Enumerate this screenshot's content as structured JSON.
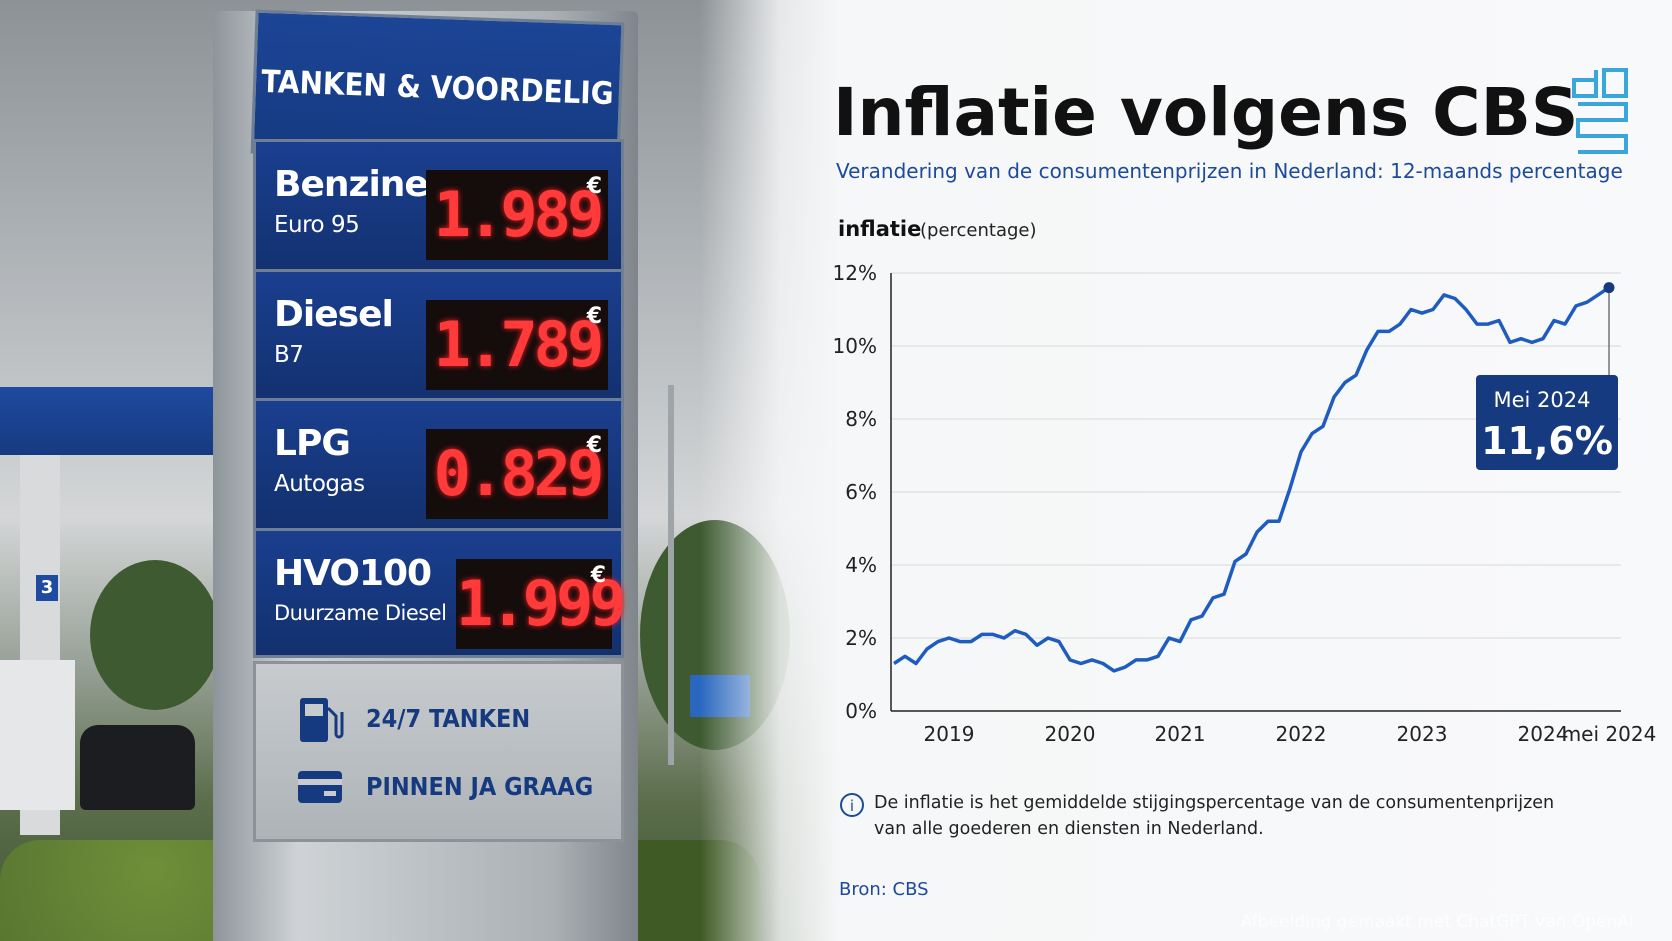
{
  "chart_data": {
    "type": "line",
    "title": "Inflatie volgens CBS",
    "subtitle": "Verandering van de consumentenprijzen in Nederland: 12-maands percentage",
    "y_label": "inflatie",
    "y_label_note": "(percentage)",
    "categories": [
      null,
      null,
      null,
      null,
      null,
      "2019",
      null,
      null,
      null,
      null,
      null,
      null,
      null,
      null,
      null,
      null,
      "2020",
      null,
      null,
      null,
      null,
      null,
      null,
      null,
      null,
      null,
      "2021",
      null,
      null,
      null,
      null,
      null,
      null,
      null,
      null,
      null,
      null,
      "2022",
      null,
      null,
      null,
      null,
      null,
      null,
      null,
      null,
      null,
      null,
      "2023",
      null,
      null,
      null,
      null,
      null,
      null,
      null,
      null,
      null,
      null,
      "2024",
      null,
      null,
      null,
      null,
      null,
      "mei 2024"
    ],
    "values": [
      1.3,
      1.5,
      1.3,
      1.7,
      1.9,
      2.0,
      1.9,
      1.9,
      2.1,
      2.1,
      2.0,
      2.2,
      2.1,
      1.8,
      2.0,
      1.9,
      1.4,
      1.3,
      1.4,
      1.3,
      1.1,
      1.2,
      1.4,
      1.4,
      1.5,
      2.0,
      1.9,
      2.5,
      2.6,
      3.1,
      3.2,
      4.1,
      4.3,
      4.9,
      5.2,
      5.2,
      6.1,
      7.1,
      7.6,
      7.8,
      8.6,
      9.0,
      9.2,
      9.9,
      10.4,
      10.4,
      10.6,
      11.0,
      10.9,
      11.0,
      11.4,
      11.3,
      11.0,
      10.6,
      10.6,
      10.7,
      10.1,
      10.2,
      10.1,
      10.2,
      10.7,
      10.6,
      11.1,
      11.2,
      11.4,
      11.6
    ],
    "color": "#1f5cc0",
    "ylim": [
      0,
      12
    ],
    "yticks": [
      {
        "value": 0,
        "label": "0%"
      },
      {
        "value": 2,
        "label": "2%"
      },
      {
        "value": 4,
        "label": "4%"
      },
      {
        "value": 6,
        "label": "6%"
      },
      {
        "value": 8,
        "label": "8%"
      },
      {
        "value": 10,
        "label": "10%"
      },
      {
        "value": 12,
        "label": "12%"
      }
    ],
    "grid": true,
    "annotation": {
      "title": "Mei 2024",
      "text": "11,6%"
    },
    "note": [
      "De inflatie is het gemiddelde stijgingspercentage van de consumentenprijzen",
      "van alle goederen en diensten in Nederland."
    ],
    "source": "Bron: CBS"
  },
  "sign": {
    "header": "TANKEN & VOORDELIG",
    "rows": [
      {
        "fuel": "Benzine",
        "grade": "Euro 95",
        "price": "1.989",
        "currency": "€"
      },
      {
        "fuel": "Diesel",
        "grade": "B7",
        "price": "1.789",
        "currency": "€"
      },
      {
        "fuel": "LPG",
        "grade": "Autogas",
        "price": "0.829",
        "currency": "€"
      },
      {
        "fuel": "HVO100",
        "grade": "Duurzame Diesel",
        "price": "1.999",
        "currency": "€"
      }
    ],
    "footer": [
      "24/7 TANKEN",
      "PINNEN JA GRAAG"
    ]
  },
  "pump_number": "3",
  "watermark": "Afbeelding gemaakt met ChatGPT van OpenAI"
}
